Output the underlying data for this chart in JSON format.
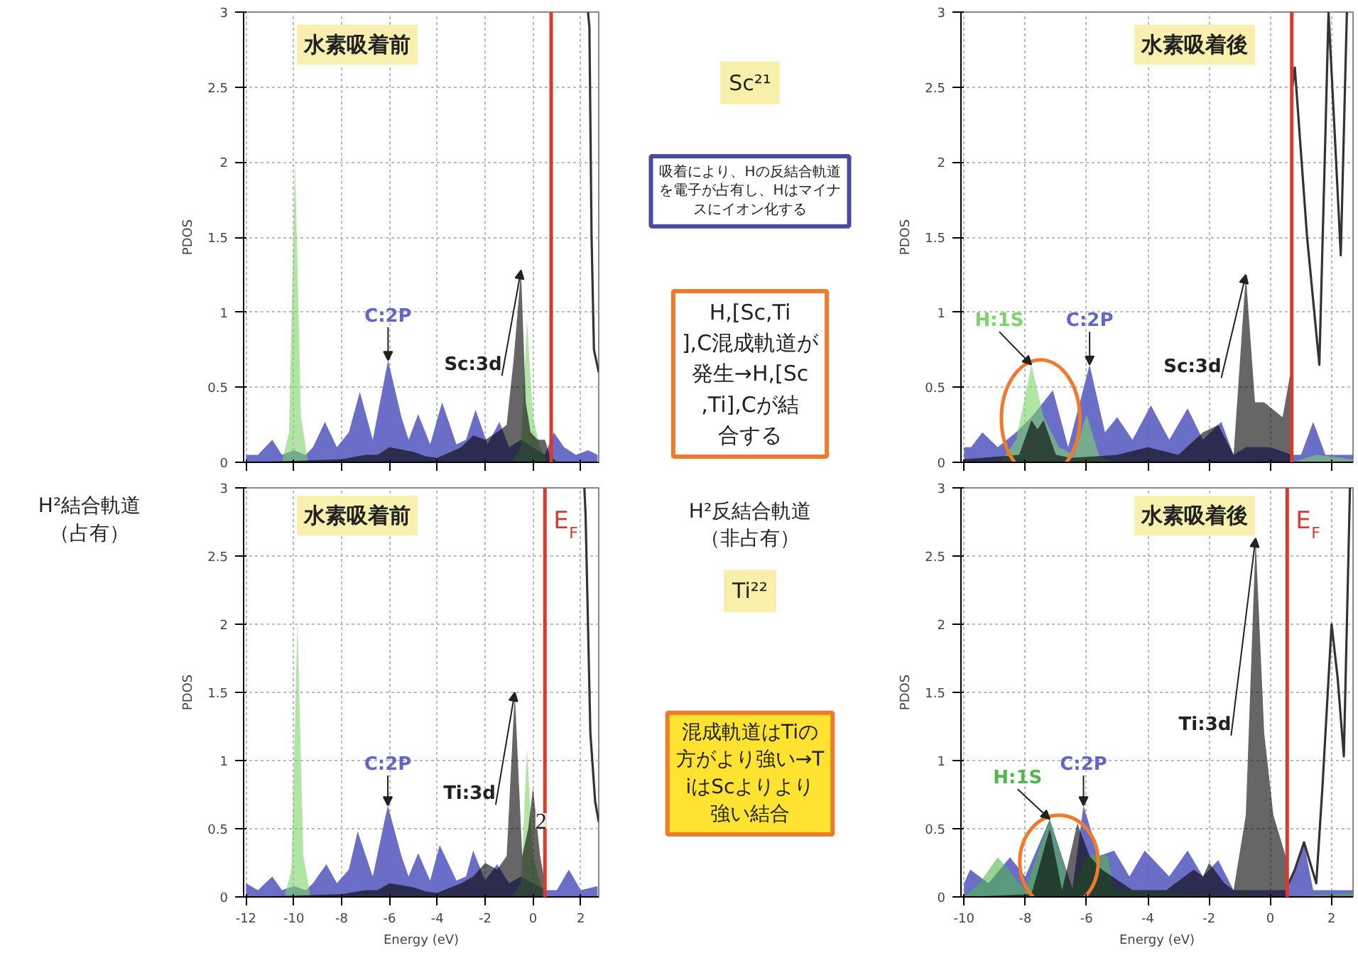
{
  "chart_data": [
    {
      "type": "area",
      "xlabel": null,
      "ylabel": "PDOS",
      "xlim": [
        -12.1,
        2.75
      ],
      "ylim": [
        0,
        3
      ],
      "xticks": [
        -12,
        -10,
        -8,
        -6,
        -4,
        -2,
        0,
        2
      ],
      "yticks": [
        0,
        0.5,
        1,
        1.5,
        2,
        2.5,
        3
      ],
      "tick_labels": "y",
      "grid": true,
      "ref_lines": [
        {
          "axis": "x",
          "value": 0.76,
          "color": "#d93a2b"
        }
      ],
      "annotations": [
        "水素吸着前"
      ],
      "series": [
        {
          "name": "C:2P",
          "color": "#6366c4",
          "type": "area",
          "x": [
            -12,
            -11.5,
            -10.9,
            -10.5,
            -10,
            -9.5,
            -9.2,
            -8.7,
            -8.2,
            -7.7,
            -7.24,
            -6.7,
            -6.06,
            -5.5,
            -5.2,
            -4.8,
            -4.3,
            -3.8,
            -3.2,
            -2.8,
            -2.4,
            -1.9,
            -1.4,
            -1.0,
            -0.5,
            0,
            0.5,
            0.87,
            1.3,
            1.8,
            2.3,
            2.7
          ],
          "values": [
            0.05,
            0.05,
            0.15,
            0.05,
            0.08,
            0.05,
            0.1,
            0.27,
            0.1,
            0.2,
            0.47,
            0.15,
            0.68,
            0.3,
            0.15,
            0.32,
            0.12,
            0.4,
            0.12,
            0.15,
            0.35,
            0.12,
            0.27,
            0.1,
            0.15,
            0.1,
            0.05,
            0.2,
            0.1,
            0.05,
            0.08,
            0.05
          ]
        },
        {
          "name": null,
          "color": "#7dd36b",
          "type": "area",
          "x": [
            -10.5,
            -10.2,
            -9.95,
            -9.7,
            -9.4,
            -9.0,
            -0.9,
            -0.5,
            -0.25,
            0,
            0.3,
            0.6
          ],
          "values": [
            0,
            0.2,
            2.01,
            0.3,
            0,
            0,
            0,
            0.1,
            0.95,
            0.3,
            0.1,
            0
          ]
        },
        {
          "name": "Sc:3d",
          "color": "#000000",
          "type": "area",
          "x": [
            -12,
            -8,
            -7,
            -6.5,
            -6,
            -5,
            -4.5,
            -4,
            -3,
            -2.5,
            -2,
            -1.5,
            -1.1,
            -0.8,
            -0.5,
            -0.3,
            -0.1,
            0.2,
            0.5,
            0.7,
            1.0,
            2.7
          ],
          "values": [
            0,
            0.02,
            0.05,
            0.05,
            0.1,
            0.07,
            0.04,
            0.03,
            0.1,
            0.18,
            0.15,
            0.2,
            0.25,
            0.7,
            1.28,
            0.4,
            0.2,
            0.15,
            0.15,
            0.05,
            0,
            0
          ]
        },
        {
          "name": null,
          "color": "#333333",
          "type": "line",
          "x": [
            2.3,
            2.36,
            2.45,
            2.55,
            2.75
          ],
          "values": [
            3,
            2.9,
            1.5,
            0.75,
            0.6
          ]
        }
      ]
    },
    {
      "type": "other",
      "annotations": [
        "Sc²¹",
        "吸着により、Hの反結合軌道を電子が占有し、Hはマイナスにイオン化する",
        "H,[Sc,Ti],C混成軌道が発生→H,[Sc,Ti],Cが結合する"
      ]
    },
    {
      "type": "area",
      "xlabel": null,
      "ylabel": "PDOS",
      "xlim": [
        -10.1,
        2.7
      ],
      "ylim": [
        0,
        3
      ],
      "xticks": [
        -10,
        -8,
        -6,
        -4,
        -2,
        0,
        2
      ],
      "yticks": [
        0,
        0.5,
        1,
        1.5,
        2,
        2.5,
        3
      ],
      "tick_labels": "y",
      "grid": true,
      "ref_lines": [
        {
          "axis": "x",
          "value": 0.7,
          "color": "#d93a2b"
        }
      ],
      "annotations": [
        "水素吸着後"
      ],
      "series": [
        {
          "name": "C:2P",
          "color": "#6366c4",
          "type": "area",
          "x": [
            -10,
            -9.77,
            -9.4,
            -8.9,
            -8.3,
            -7.8,
            -7.1,
            -6.6,
            -5.9,
            -5.4,
            -5.0,
            -4.5,
            -3.9,
            -3.3,
            -2.7,
            -2.2,
            -1.6,
            -1.2,
            -0.8,
            0,
            0.7,
            1.0,
            1.4,
            1.8,
            2.7
          ],
          "values": [
            0.1,
            0.1,
            0.2,
            0.1,
            0.2,
            0.3,
            0.48,
            0.1,
            0.65,
            0.2,
            0.3,
            0.15,
            0.38,
            0.15,
            0.36,
            0.15,
            0.27,
            0.05,
            0.1,
            0.1,
            0.05,
            0.05,
            0.27,
            0.05,
            0.05
          ]
        },
        {
          "name": "H:1S",
          "color": "#7dd36b",
          "type": "area",
          "x": [
            -8.8,
            -8.3,
            -7.8,
            -7.4,
            -6.9,
            -6.4,
            -6.0,
            -5.6,
            -5.2,
            0.7,
            1.5,
            2.7
          ],
          "values": [
            0,
            0.15,
            0.65,
            0.3,
            0.1,
            0.05,
            0.32,
            0.05,
            0,
            0,
            0.05,
            0.02
          ]
        },
        {
          "name": "Sc:3d",
          "color": "#000000",
          "type": "area",
          "x": [
            -10,
            -8.2,
            -7.8,
            -7.6,
            -7.4,
            -7.0,
            -6.5,
            -5,
            -4,
            -3,
            -2.2,
            -1.7,
            -1.2,
            -0.8,
            -0.5,
            -0.2,
            0.4,
            0.66,
            0.7
          ],
          "values": [
            0.02,
            0.05,
            0.28,
            0.22,
            0.28,
            0.05,
            0.03,
            0.05,
            0.1,
            0.05,
            0.2,
            0.25,
            0.05,
            1.25,
            0.4,
            0.4,
            0.3,
            0.6,
            0
          ]
        },
        {
          "name": null,
          "color": "#333333",
          "type": "line",
          "x": [
            0.72,
            0.8,
            1.2,
            1.6,
            1.8,
            1.9,
            2.1,
            2.3,
            2.45,
            2.5
          ],
          "values": [
            2.5,
            2.63,
            1.5,
            0.65,
            2.2,
            3,
            2.2,
            1.38,
            2.6,
            3
          ]
        }
      ]
    },
    {
      "type": "other",
      "annotations": [
        "H²結合軌道（占有）"
      ]
    },
    {
      "type": "area",
      "xlabel": "Energy (eV)",
      "ylabel": "PDOS",
      "xlim": [
        -12.1,
        2.75
      ],
      "ylim": [
        0,
        3
      ],
      "xticks": [
        -12,
        -10,
        -8,
        -6,
        -4,
        -2,
        0,
        2
      ],
      "yticks": [
        0,
        0.5,
        1,
        1.5,
        2,
        2.5,
        3
      ],
      "grid": true,
      "ref_lines": [
        {
          "axis": "x",
          "value": 0.5,
          "color": "#d93a2b",
          "label": "E$_{F}$"
        }
      ],
      "annotations": [
        "水素吸着前",
        {
          "text": "2",
          "x": 0.1,
          "y": 0.5
        }
      ],
      "series": [
        {
          "name": "C:2P",
          "color": "#6366c4",
          "type": "area",
          "x": [
            -12,
            -11.5,
            -10.9,
            -10.5,
            -10,
            -9.5,
            -9.2,
            -8.64,
            -8.2,
            -7.7,
            -7.33,
            -6.7,
            -6.07,
            -5.5,
            -5.2,
            -4.8,
            -4.3,
            -3.9,
            -3.2,
            -2.8,
            -2.5,
            -2.0,
            -1.5,
            -1.0,
            -0.5,
            0,
            0.5,
            1.0,
            1.5,
            2.0,
            2.7
          ],
          "values": [
            0.1,
            0.05,
            0.15,
            0.05,
            0.08,
            0.05,
            0.1,
            0.24,
            0.1,
            0.2,
            0.48,
            0.15,
            0.67,
            0.3,
            0.15,
            0.32,
            0.12,
            0.38,
            0.12,
            0.15,
            0.34,
            0.12,
            0.24,
            0.1,
            0.15,
            0.1,
            0.05,
            0.05,
            0.2,
            0.05,
            0.08
          ]
        },
        {
          "name": null,
          "color": "#7dd36b",
          "type": "area",
          "x": [
            -10.4,
            -10.1,
            -9.85,
            -9.6,
            -9.3,
            -9.0,
            -0.9,
            -0.5,
            -0.25,
            0,
            0.3,
            0.6
          ],
          "values": [
            0,
            0.2,
            2.03,
            0.3,
            0,
            0,
            0,
            0.1,
            1.09,
            0.3,
            0.1,
            0
          ]
        },
        {
          "name": "Ti:3d",
          "color": "#000000",
          "type": "area",
          "x": [
            -12,
            -8,
            -7,
            -6.5,
            -6,
            -5,
            -4.5,
            -4,
            -3,
            -2.5,
            -2,
            -1.5,
            -1.1,
            -0.76,
            -0.45,
            -0.2,
            0,
            0.3,
            0.5,
            0.55
          ],
          "values": [
            0,
            0.02,
            0.05,
            0.05,
            0.1,
            0.07,
            0.04,
            0.03,
            0.1,
            0.15,
            0.25,
            0.2,
            0.3,
            1.5,
            0.3,
            0.5,
            0.8,
            0.3,
            0.1,
            0
          ]
        },
        {
          "name": null,
          "color": "#333333",
          "type": "line",
          "x": [
            2.15,
            2.2,
            2.4,
            2.6,
            2.75
          ],
          "values": [
            3,
            2.8,
            1.2,
            0.7,
            0.55
          ]
        }
      ]
    },
    {
      "type": "other",
      "annotations": [
        "H²反結合軌道（非占有）",
        "Ti²²",
        "混成軌道はTiの方がより強い→TiはScよりより強い結合"
      ]
    },
    {
      "type": "area",
      "xlabel": "Energy (eV)",
      "ylabel": "PDOS",
      "xlim": [
        -10.1,
        2.7
      ],
      "ylim": [
        0,
        3
      ],
      "xticks": [
        -10,
        -8,
        -6,
        -4,
        -2,
        0,
        2
      ],
      "yticks": [
        0,
        0.5,
        1,
        1.5,
        2,
        2.5,
        3
      ],
      "grid": true,
      "ref_lines": [
        {
          "axis": "x",
          "value": 0.55,
          "color": "#d93a2b",
          "label": "E$_{F}$"
        }
      ],
      "annotations": [
        "水素吸着後"
      ],
      "series": [
        {
          "name": "C:2P",
          "color": "#6366c4",
          "type": "area",
          "x": [
            -10,
            -9.8,
            -9.2,
            -8.5,
            -8.0,
            -7.2,
            -6.46,
            -6.1,
            -5.6,
            -5.1,
            -4.6,
            -4.1,
            -3.3,
            -2.7,
            -2.2,
            -1.7,
            -1.2,
            -0.5,
            0.5,
            0.8,
            1.1,
            1.4,
            2.0,
            2.7
          ],
          "values": [
            0.1,
            0.2,
            0.1,
            0.29,
            0.15,
            0.57,
            0.06,
            0.67,
            0.3,
            0.34,
            0.15,
            0.34,
            0.15,
            0.34,
            0.15,
            0.27,
            0.05,
            0.05,
            0.05,
            0.2,
            0.39,
            0.05,
            0.05,
            0.05
          ]
        },
        {
          "name": "H:1S",
          "color": "#4fb84a",
          "type": "area",
          "x": [
            -10,
            -9.5,
            -8.9,
            -8.0,
            -7.2,
            -6.5,
            -6.0,
            -5.7,
            -5.3,
            -5.1,
            -1.2,
            -0.9,
            -0.6,
            0.5,
            2.7
          ],
          "values": [
            0,
            0.1,
            0.29,
            0.05,
            0.57,
            0.05,
            0.3,
            0.31,
            0.3,
            0.05,
            0,
            0.05,
            0,
            0,
            0.03
          ]
        },
        {
          "name": "Ti:3d",
          "color": "#000000",
          "type": "area",
          "x": [
            -10,
            -7.8,
            -7.2,
            -6.8,
            -6.3,
            -5.9,
            -5.5,
            -4.5,
            -3.4,
            -2.5,
            -2.2,
            -2.0,
            -1.5,
            -1.2,
            -0.8,
            -0.48,
            -0.2,
            0.1,
            0.5,
            0.55
          ],
          "values": [
            0,
            0.02,
            0.5,
            0.05,
            0.54,
            0.3,
            0.2,
            0.05,
            0.05,
            0.2,
            0.15,
            0.25,
            0.1,
            0.05,
            0.6,
            2.63,
            1.2,
            0.6,
            0.3,
            0
          ]
        },
        {
          "name": null,
          "color": "#333333",
          "type": "line",
          "x": [
            0.6,
            0.8,
            1.1,
            1.3,
            1.5,
            1.7,
            2.0,
            2.2,
            2.4,
            2.55,
            2.6
          ],
          "values": [
            0.1,
            0.2,
            0.4,
            0.25,
            0.1,
            0.8,
            2.0,
            1.6,
            1.03,
            2.5,
            3
          ]
        }
      ]
    }
  ]
}
